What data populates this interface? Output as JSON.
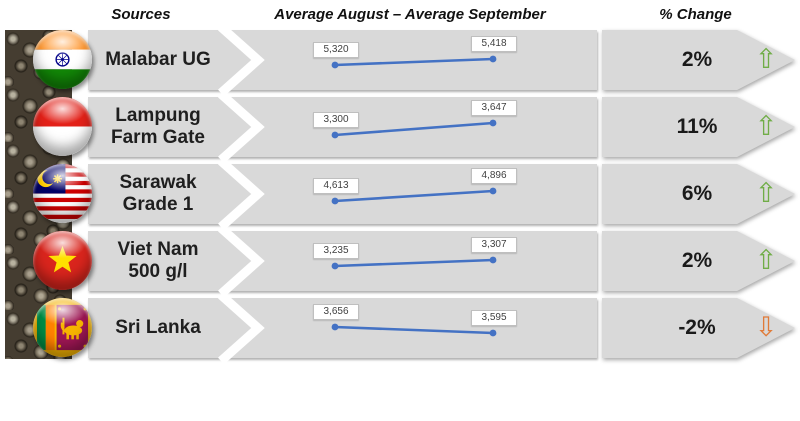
{
  "header": {
    "sources": "Sources",
    "middle": "Average August – Average September",
    "change": "% Change"
  },
  "icons": {
    "up": "⇧",
    "down": "⇩"
  },
  "colors": {
    "band": "#d9d9d9",
    "line": "#4472c4",
    "up": "#70ad47",
    "down": "#e07b39",
    "label_border": "#bfbfbf"
  },
  "chart_data": {
    "type": "line",
    "title": "Average August – Average September",
    "x": [
      "Average August",
      "Average September"
    ],
    "legend_position": "none",
    "grid": false,
    "series": [
      {
        "name": "Malabar UG",
        "name_lines": [
          "Malabar UG"
        ],
        "country": "India",
        "values": [
          5320,
          5418
        ],
        "labels": [
          "5,320",
          "5,418"
        ],
        "change": "2%",
        "direction": "up"
      },
      {
        "name": "Lampung Farm Gate",
        "name_lines": [
          "Lampung",
          "Farm Gate"
        ],
        "country": "Indonesia",
        "values": [
          3300,
          3647
        ],
        "labels": [
          "3,300",
          "3,647"
        ],
        "change": "11%",
        "direction": "up"
      },
      {
        "name": "Sarawak Grade 1",
        "name_lines": [
          "Sarawak",
          "Grade 1"
        ],
        "country": "Malaysia",
        "values": [
          4613,
          4896
        ],
        "labels": [
          "4,613",
          "4,896"
        ],
        "change": "6%",
        "direction": "up"
      },
      {
        "name": "Viet Nam 500 g/l",
        "name_lines": [
          "Viet Nam",
          "500 g/l"
        ],
        "country": "Viet Nam",
        "values": [
          3235,
          3307
        ],
        "labels": [
          "3,235",
          "3,307"
        ],
        "change": "2%",
        "direction": "up"
      },
      {
        "name": "Sri Lanka",
        "name_lines": [
          "Sri Lanka"
        ],
        "country": "Sri Lanka",
        "values": [
          3656,
          3595
        ],
        "labels": [
          "3,656",
          "3,595"
        ],
        "change": "-2%",
        "direction": "down"
      }
    ]
  }
}
